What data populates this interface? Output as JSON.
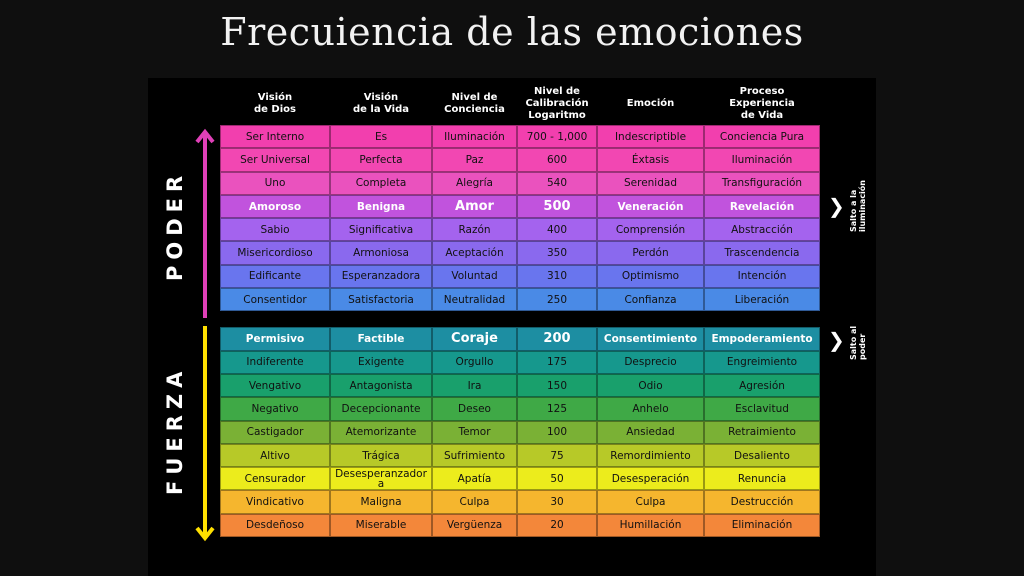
{
  "title": "Frecuiencia de las emociones",
  "headers": [
    [
      "Visión",
      "de Dios"
    ],
    [
      "Visión",
      "de la Vida"
    ],
    [
      "Nivel de",
      "Conciencia"
    ],
    [
      "Nivel de",
      "Calibración",
      "Logaritmo"
    ],
    [
      "Emoción"
    ],
    [
      "Proceso",
      "Experiencia",
      "de Vida"
    ]
  ],
  "side_labels": {
    "top": "PODER",
    "bottom": "FUERZA"
  },
  "notes": {
    "top": "Salto a la iluminación",
    "bottom": "Salto al poder"
  },
  "colors": {
    "arrow_top": "#e040b8",
    "arrow_bottom": "#ffe000"
  },
  "power_rows": [
    {
      "cells": [
        "Ser Interno",
        "Es",
        "Iluminación",
        "700 - 1,000",
        "Indescriptible",
        "Conciencia Pura"
      ],
      "color": "#f23fae"
    },
    {
      "cells": [
        "Ser Universal",
        "Perfecta",
        "Paz",
        "600",
        "Éxtasis",
        "Iluminación"
      ],
      "color": "#f247b2"
    },
    {
      "cells": [
        "Uno",
        "Completa",
        "Alegría",
        "540",
        "Serenidad",
        "Transfiguración"
      ],
      "color": "#ea52be"
    },
    {
      "cells": [
        "Amoroso",
        "Benigna",
        "Amor",
        "500",
        "Veneración",
        "Revelación"
      ],
      "color": "#c153dd"
    },
    {
      "cells": [
        "Sabio",
        "Significativa",
        "Razón",
        "400",
        "Comprensión",
        "Abstracción"
      ],
      "color": "#a463ee"
    },
    {
      "cells": [
        "Misericordioso",
        "Armoniosa",
        "Aceptación",
        "350",
        "Perdón",
        "Trascendencia"
      ],
      "color": "#8a69ee"
    },
    {
      "cells": [
        "Edificante",
        "Esperanzadora",
        "Voluntad",
        "310",
        "Optimismo",
        "Intención"
      ],
      "color": "#6975ee"
    },
    {
      "cells": [
        "Consentidor",
        "Satisfactoria",
        "Neutralidad",
        "250",
        "Confianza",
        "Liberación"
      ],
      "color": "#4a8ae6"
    }
  ],
  "force_rows": [
    {
      "cells": [
        "Permisivo",
        "Factible",
        "Coraje",
        "200",
        "Consentimiento",
        "Empoderamiento"
      ],
      "color": "#1d8ea2"
    },
    {
      "cells": [
        "Indiferente",
        "Exigente",
        "Orgullo",
        "175",
        "Desprecio",
        "Engreimiento"
      ],
      "color": "#16988d"
    },
    {
      "cells": [
        "Vengativo",
        "Antagonista",
        "Ira",
        "150",
        "Odio",
        "Agresión"
      ],
      "color": "#19a06c"
    },
    {
      "cells": [
        "Negativo",
        "Decepcionante",
        "Deseo",
        "125",
        "Anhelo",
        "Esclavitud"
      ],
      "color": "#3fa946"
    },
    {
      "cells": [
        "Castigador",
        "Atemorizante",
        "Temor",
        "100",
        "Ansiedad",
        "Retraimiento"
      ],
      "color": "#7ab135"
    },
    {
      "cells": [
        "Altivo",
        "Trágica",
        "Sufrimiento",
        "75",
        "Remordimiento",
        "Desaliento"
      ],
      "color": "#b7c928"
    },
    {
      "cells": [
        "Censurador",
        "Desesperanzador a",
        "Apatía",
        "50",
        "Desesperación",
        "Renuncia"
      ],
      "color": "#ecec1c"
    },
    {
      "cells": [
        "Vindicativo",
        "Maligna",
        "Culpa",
        "30",
        "Culpa",
        "Destrucción"
      ],
      "color": "#f5b62e"
    },
    {
      "cells": [
        "Desdeñoso",
        "Miserable",
        "Vergüenza",
        "20",
        "Humillación",
        "Eliminación"
      ],
      "color": "#f3873a"
    }
  ]
}
